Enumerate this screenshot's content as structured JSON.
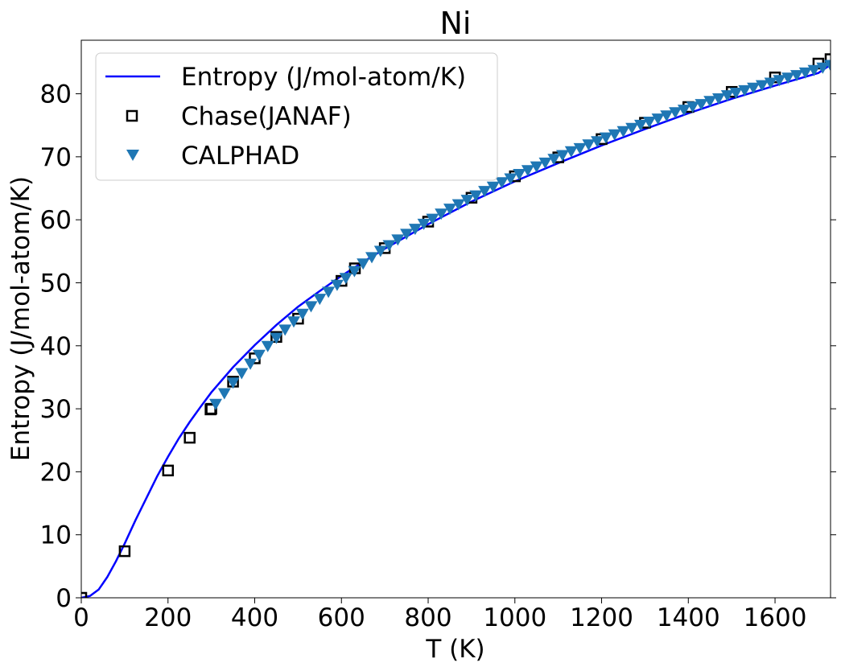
{
  "chart_data": {
    "type": "line",
    "title": "Ni",
    "xlabel": "T (K)",
    "ylabel": "Entropy (J/mol-atom/K)",
    "xlim": [
      0,
      1728
    ],
    "ylim": [
      0,
      88.5
    ],
    "xticks": [
      0,
      200,
      400,
      600,
      800,
      1000,
      1200,
      1400,
      1600
    ],
    "yticks": [
      0,
      10,
      20,
      30,
      40,
      50,
      60,
      70,
      80
    ],
    "grid": false,
    "legend_position": "top-left",
    "series": [
      {
        "name": "Entropy (J/mol-atom/K)",
        "kind": "line",
        "color": "#0000ff",
        "x": [
          0,
          20,
          40,
          60,
          80,
          100,
          125,
          150,
          175,
          200,
          225,
          250,
          275,
          300,
          350,
          400,
          450,
          500,
          550,
          600,
          650,
          700,
          800,
          900,
          1000,
          1100,
          1200,
          1300,
          1400,
          1500,
          1600,
          1700,
          1728
        ],
        "y": [
          0,
          0.3,
          1.3,
          3.3,
          5.8,
          8.6,
          12.3,
          15.8,
          19.3,
          22.4,
          25.3,
          27.9,
          30.3,
          32.6,
          36.6,
          40.1,
          43.3,
          46.2,
          48.7,
          51.1,
          53.3,
          55.4,
          59.3,
          62.9,
          66.1,
          69.0,
          71.8,
          74.4,
          76.9,
          79.2,
          81.3,
          83.3,
          84.6
        ]
      },
      {
        "name": "Chase(JANAF)",
        "kind": "scatter",
        "marker": "square-open",
        "color": "#000000",
        "x": [
          0,
          100,
          200,
          250,
          298.15,
          300,
          350,
          400,
          450,
          500,
          600,
          631,
          700,
          800,
          900,
          1000,
          1100,
          1200,
          1300,
          1400,
          1500,
          1600,
          1700,
          1728
        ],
        "y": [
          0,
          7.4,
          20.2,
          25.4,
          29.9,
          30.0,
          34.3,
          38.0,
          41.4,
          44.3,
          50.3,
          52.3,
          55.5,
          59.7,
          63.5,
          66.9,
          69.9,
          72.8,
          75.4,
          77.9,
          80.3,
          82.6,
          84.8,
          85.5
        ]
      },
      {
        "name": "CALPHAD",
        "kind": "scatter",
        "marker": "triangle-down",
        "color": "#1f77b4",
        "x": [
          310,
          330,
          350,
          370,
          390,
          410,
          430,
          450,
          470,
          490,
          510,
          530,
          550,
          570,
          590,
          610,
          630,
          650,
          670,
          690,
          710,
          730,
          750,
          770,
          790,
          810,
          830,
          850,
          870,
          890,
          910,
          930,
          950,
          970,
          990,
          1010,
          1030,
          1050,
          1070,
          1090,
          1110,
          1130,
          1150,
          1170,
          1190,
          1210,
          1230,
          1250,
          1270,
          1290,
          1310,
          1330,
          1350,
          1370,
          1390,
          1410,
          1430,
          1450,
          1470,
          1490,
          1510,
          1530,
          1550,
          1570,
          1590,
          1610,
          1630,
          1650,
          1670,
          1690,
          1710,
          1728
        ],
        "y": [
          30.8,
          32.5,
          34.2,
          35.7,
          37.2,
          38.6,
          40.0,
          41.3,
          42.6,
          43.9,
          45.1,
          46.3,
          47.5,
          48.6,
          49.7,
          50.8,
          51.9,
          53.1,
          54.1,
          55.1,
          56.0,
          56.9,
          57.8,
          58.6,
          59.4,
          60.2,
          61.0,
          61.8,
          62.5,
          63.2,
          63.9,
          64.6,
          65.3,
          66.0,
          66.6,
          67.3,
          67.9,
          68.5,
          69.1,
          69.7,
          70.3,
          70.9,
          71.4,
          72.0,
          72.5,
          73.1,
          73.6,
          74.1,
          74.6,
          75.1,
          75.6,
          76.1,
          76.6,
          77.1,
          77.5,
          78.0,
          78.4,
          78.9,
          79.3,
          79.8,
          80.2,
          80.6,
          81.0,
          81.4,
          81.8,
          82.2,
          82.6,
          83.0,
          83.4,
          83.8,
          84.2,
          84.6
        ]
      }
    ]
  }
}
